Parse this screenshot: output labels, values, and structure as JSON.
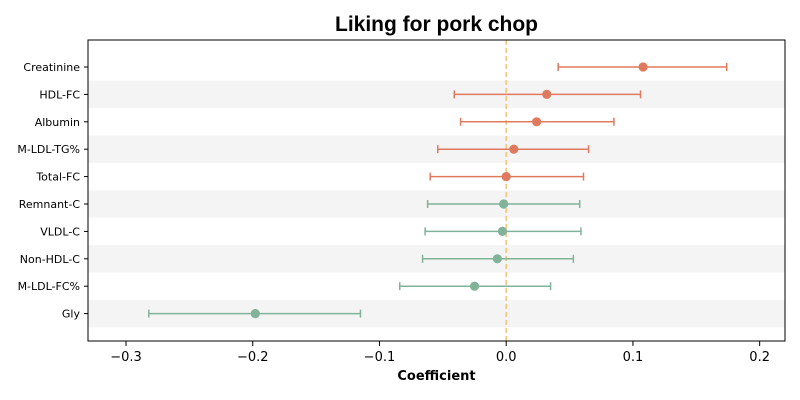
{
  "chart_data": {
    "type": "forest",
    "title": "Liking for pork chop",
    "xlabel": "Coefficient",
    "xlim": [
      -0.33,
      0.22
    ],
    "x_ticks": [
      {
        "value": -0.3,
        "label": "−0.3"
      },
      {
        "value": -0.2,
        "label": "−0.2"
      },
      {
        "value": -0.1,
        "label": "−0.1"
      },
      {
        "value": 0.0,
        "label": "0.0"
      },
      {
        "value": 0.1,
        "label": "0.1"
      },
      {
        "value": 0.2,
        "label": "0.2"
      }
    ],
    "reference_line": {
      "x": 0.0,
      "style": "dashed",
      "color": "#f5c77e"
    },
    "row_shading": "alternating",
    "colors": {
      "positive": "#e07a5f",
      "negative": "#81b29a"
    },
    "rows": [
      {
        "label": "Creatinine",
        "estimate": 0.108,
        "ci_low": 0.041,
        "ci_high": 0.174,
        "color": "#e07a5f"
      },
      {
        "label": "HDL-FC",
        "estimate": 0.032,
        "ci_low": -0.041,
        "ci_high": 0.106,
        "color": "#e07a5f"
      },
      {
        "label": "Albumin",
        "estimate": 0.024,
        "ci_low": -0.036,
        "ci_high": 0.085,
        "color": "#e07a5f"
      },
      {
        "label": "M-LDL-TG%",
        "estimate": 0.006,
        "ci_low": -0.054,
        "ci_high": 0.065,
        "color": "#e07a5f"
      },
      {
        "label": "Total-FC",
        "estimate": 0.0,
        "ci_low": -0.06,
        "ci_high": 0.061,
        "color": "#e07a5f"
      },
      {
        "label": "Remnant-C",
        "estimate": -0.002,
        "ci_low": -0.062,
        "ci_high": 0.058,
        "color": "#81b29a"
      },
      {
        "label": "VLDL-C",
        "estimate": -0.003,
        "ci_low": -0.064,
        "ci_high": 0.059,
        "color": "#81b29a"
      },
      {
        "label": "Non-HDL-C",
        "estimate": -0.007,
        "ci_low": -0.066,
        "ci_high": 0.053,
        "color": "#81b29a"
      },
      {
        "label": "M-LDL-FC%",
        "estimate": -0.025,
        "ci_low": -0.084,
        "ci_high": 0.035,
        "color": "#81b29a"
      },
      {
        "label": "Gly",
        "estimate": -0.198,
        "ci_low": -0.282,
        "ci_high": -0.115,
        "color": "#81b29a"
      }
    ]
  }
}
